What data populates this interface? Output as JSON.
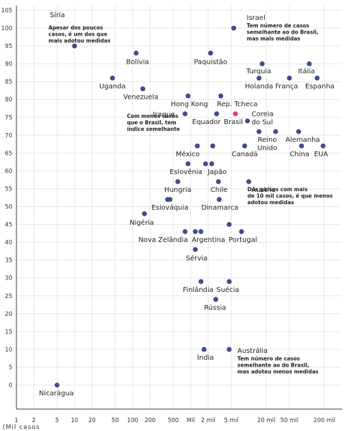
{
  "chart_data": {
    "type": "scatter",
    "x_scale": "log",
    "grid": true,
    "x_ticks": [
      {
        "value": 1,
        "label": "1"
      },
      {
        "value": 2,
        "label": "2"
      },
      {
        "value": 5,
        "label": "5"
      },
      {
        "value": 10,
        "label": "10"
      },
      {
        "value": 20,
        "label": "20"
      },
      {
        "value": 50,
        "label": "50"
      },
      {
        "value": 100,
        "label": "100"
      },
      {
        "value": 200,
        "label": "200"
      },
      {
        "value": 500,
        "label": "500"
      },
      {
        "value": 1000,
        "label": "Mil"
      },
      {
        "value": 2000,
        "label": "2 mil"
      },
      {
        "value": 5000,
        "label": "5 mil"
      },
      {
        "value": 20000,
        "label": "20 mil"
      },
      {
        "value": 50000,
        "label": "50 mil"
      },
      {
        "value": 200000,
        "label": "200 mil"
      }
    ],
    "ylim": [
      0,
      105
    ],
    "y_ticks": [
      0,
      5,
      10,
      15,
      20,
      25,
      30,
      35,
      40,
      45,
      50,
      55,
      60,
      65,
      70,
      75,
      80,
      85,
      90,
      95,
      100,
      105
    ],
    "points": [
      {
        "name": "Síria",
        "x": 10,
        "y": 95
      },
      {
        "name": "Israel",
        "x": 5500,
        "y": 100
      },
      {
        "name": "Bolívia",
        "x": 115,
        "y": 93
      },
      {
        "name": "Paquistão",
        "x": 2200,
        "y": 93
      },
      {
        "name": "Turquia",
        "x": 17000,
        "y": 90
      },
      {
        "name": "Itália",
        "x": 110000,
        "y": 90
      },
      {
        "name": "Uganda",
        "x": 45,
        "y": 86
      },
      {
        "name": "Holanda",
        "x": 15000,
        "y": 86
      },
      {
        "name": "França",
        "x": 50000,
        "y": 86
      },
      {
        "name": "Espanha",
        "x": 150000,
        "y": 86
      },
      {
        "name": "Venezuela",
        "x": 150,
        "y": 83
      },
      {
        "name": "Hong Kong",
        "x": 900,
        "y": 81
      },
      {
        "name": "Rep. Tcheca",
        "x": 3300,
        "y": 81
      },
      {
        "name": "Iraque",
        "x": 800,
        "y": 76
      },
      {
        "name": "Equador",
        "x": 2800,
        "y": 76
      },
      {
        "name": "Brasil",
        "x": 5900,
        "y": 76,
        "highlight": true
      },
      {
        "name": "Coreia do Sul",
        "x": 9500,
        "y": 74
      },
      {
        "name": "Reino Unido",
        "x": 15000,
        "y": 71
      },
      {
        "name": "",
        "x": 29000,
        "y": 71
      },
      {
        "name": "Alemanha",
        "x": 72000,
        "y": 71
      },
      {
        "name": "México",
        "x": 1300,
        "y": 67
      },
      {
        "name": "",
        "x": 2400,
        "y": 67
      },
      {
        "name": "Canadá",
        "x": 8500,
        "y": 67
      },
      {
        "name": "China",
        "x": 81000,
        "y": 67
      },
      {
        "name": "EUA",
        "x": 190000,
        "y": 67
      },
      {
        "name": "Eslovênia",
        "x": 900,
        "y": 62
      },
      {
        "name": "",
        "x": 1800,
        "y": 62
      },
      {
        "name": "Japão",
        "x": 2300,
        "y": 62
      },
      {
        "name": "Hungria",
        "x": 600,
        "y": 57
      },
      {
        "name": "Chile",
        "x": 3000,
        "y": 57
      },
      {
        "name": "Áustria",
        "x": 10000,
        "y": 57
      },
      {
        "name": "",
        "x": 400,
        "y": 52
      },
      {
        "name": "Eslováquia",
        "x": 440,
        "y": 52
      },
      {
        "name": "Dinamarca",
        "x": 3100,
        "y": 52
      },
      {
        "name": "Nigéria",
        "x": 160,
        "y": 48
      },
      {
        "name": "",
        "x": 4600,
        "y": 45
      },
      {
        "name": "Nova Zelândia",
        "x": 800,
        "y": 43
      },
      {
        "name": "",
        "x": 1200,
        "y": 43
      },
      {
        "name": "Argentina",
        "x": 1500,
        "y": 43
      },
      {
        "name": "Portugal",
        "x": 7500,
        "y": 43
      },
      {
        "name": "Sérvia",
        "x": 1200,
        "y": 38
      },
      {
        "name": "Finlândia",
        "x": 1500,
        "y": 29
      },
      {
        "name": "Suécia",
        "x": 4600,
        "y": 29
      },
      {
        "name": "Rússia",
        "x": 2700,
        "y": 24
      },
      {
        "name": "Índia",
        "x": 1700,
        "y": 10
      },
      {
        "name": "Austrália",
        "x": 4600,
        "y": 10
      },
      {
        "name": "Nicarágua",
        "x": 5,
        "y": 0
      }
    ],
    "annotations": [
      {
        "for": "Síria",
        "lines": [
          "Apesar dos poucos",
          "casos, é um dos que",
          "mais adotou medidas"
        ]
      },
      {
        "for": "Israel",
        "lines": [
          "Tem número de casos",
          "semelhante ao do Brasil,",
          "mas mais medidas"
        ]
      },
      {
        "for": "Iraque",
        "lines": [
          "Com menos casos",
          "que o Brasil, tem",
          "índice semelhante"
        ]
      },
      {
        "for": "Áustria",
        "lines": [
          "Dos países com mais",
          "de 10 mil casos, é que menos",
          "adotou medidas"
        ]
      },
      {
        "for": "Austrália",
        "lines": [
          "Tem número de casos",
          "semelhante ao do Brasil,",
          "mas adotou menos medidas"
        ]
      }
    ],
    "colors": {
      "point": "#3d4f8c",
      "highlight": "#e0455d",
      "grid": "#e6e6e6",
      "axis": "#333333"
    }
  },
  "footer_text": "(Mil casos"
}
